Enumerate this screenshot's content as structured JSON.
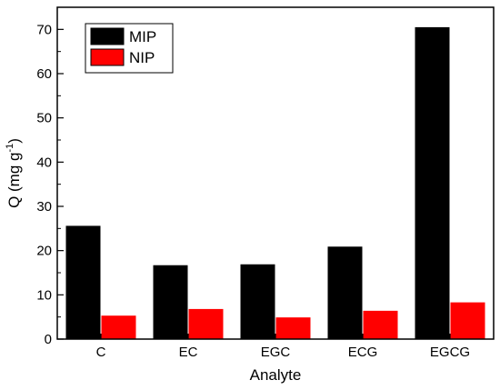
{
  "chart_data": {
    "type": "bar",
    "categories": [
      "C",
      "EC",
      "EGC",
      "ECG",
      "EGCG"
    ],
    "series": [
      {
        "name": "MIP",
        "values": [
          25.6,
          16.7,
          16.9,
          20.9,
          70.5
        ],
        "color": "#000000"
      },
      {
        "name": "NIP",
        "values": [
          5.3,
          6.8,
          4.9,
          6.4,
          8.3
        ],
        "color": "#ff0000"
      }
    ],
    "xlabel": "Analyte",
    "ylabel": {
      "main": "Q (mg g",
      "superscript": "-1",
      "close": ")"
    },
    "ylim": [
      0,
      75
    ],
    "yticks": [
      0,
      10,
      20,
      30,
      40,
      50,
      60,
      70
    ],
    "grid": false,
    "legend_position": "top-left"
  }
}
